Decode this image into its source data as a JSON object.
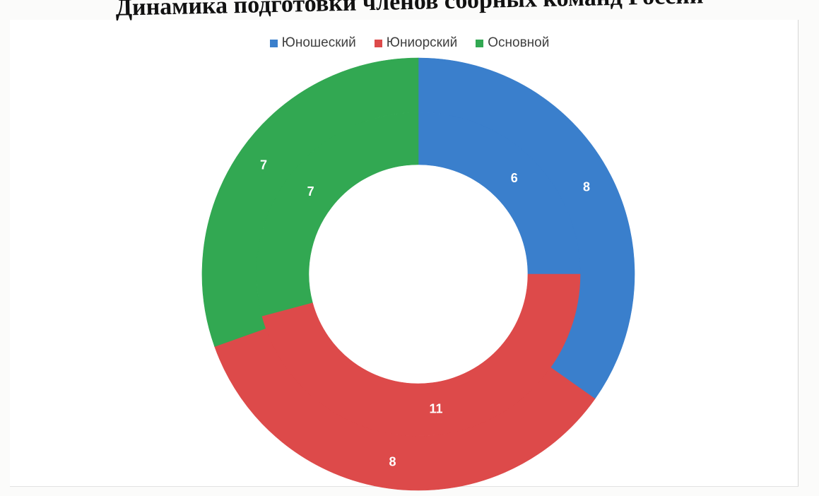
{
  "chart_data": {
    "type": "pie",
    "title": "Динамика подготовки членов сборных команд России",
    "categories": [
      "Юношеский",
      "Юниорский",
      "Основной"
    ],
    "colors": [
      "#3a7fcc",
      "#dd4a4a",
      "#32a852"
    ],
    "series": [
      {
        "ring": "outer",
        "values": [
          8,
          8,
          7
        ]
      },
      {
        "ring": "inner",
        "values": [
          6,
          11,
          7
        ]
      }
    ],
    "legend_position": "top"
  }
}
